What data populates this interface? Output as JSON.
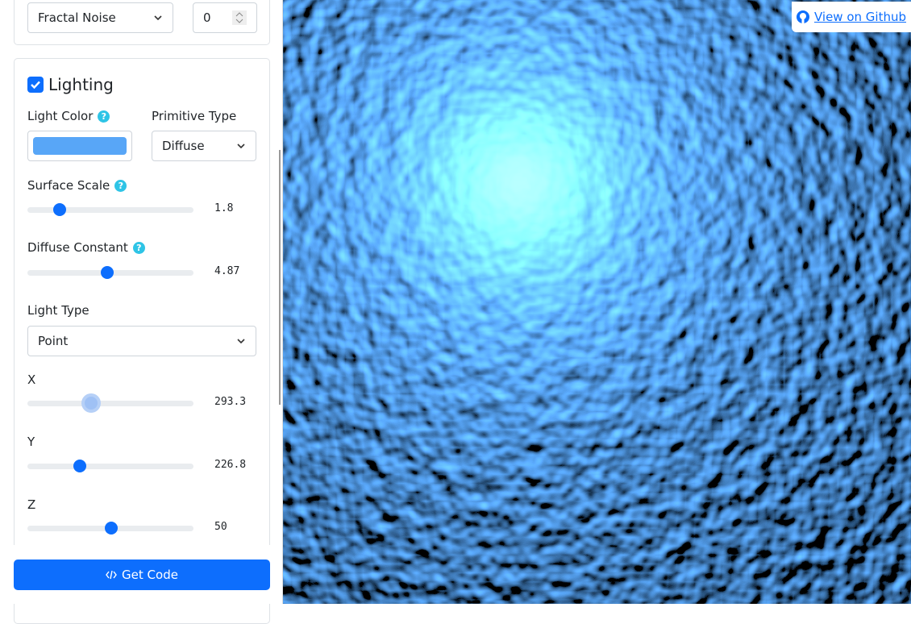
{
  "noise_section": {
    "noise_type": "Fractal Noise",
    "seed": 0
  },
  "lighting": {
    "title": "Lighting",
    "light_color_label": "Light Color",
    "primitive_type_label": "Primitive Type",
    "primitive_type": "Diffuse",
    "surface_scale": {
      "label": "Surface Scale",
      "value": 1.8
    },
    "diffuse_constant": {
      "label": "Diffuse Constant",
      "value": 4.87
    },
    "light_type_label": "Light Type",
    "light_type": "Point",
    "x": {
      "label": "X",
      "value": 293.3
    },
    "y": {
      "label": "Y",
      "value": 226.8
    },
    "z": {
      "label": "Z",
      "value": 50
    }
  },
  "get_code": "Get Code",
  "github_link": "View on Github"
}
